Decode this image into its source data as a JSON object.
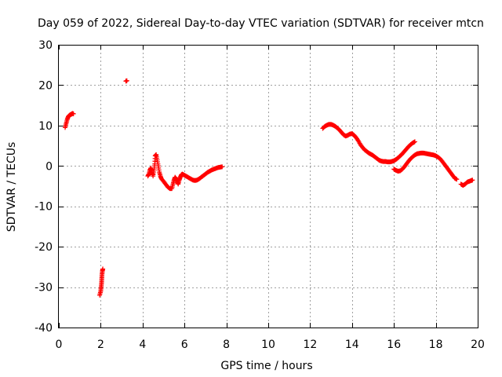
{
  "chart_data": {
    "type": "scatter",
    "title": "Day 059 of 2022, Sidereal Day-to-day VTEC variation (SDTVAR) for receiver mtcn",
    "xlabel": "GPS time / hours",
    "ylabel": "SDTVAR / TECUs",
    "xlim": [
      0,
      20
    ],
    "ylim": [
      -40,
      30
    ],
    "x_ticks": [
      0,
      2,
      4,
      6,
      8,
      10,
      12,
      14,
      16,
      18,
      20
    ],
    "y_ticks": [
      -40,
      -30,
      -20,
      -10,
      0,
      10,
      20,
      30
    ],
    "x_tick_labels": [
      "0",
      "2",
      "4",
      "6",
      "8",
      "10",
      "12",
      "14",
      "16",
      "18",
      "20"
    ],
    "y_tick_labels": [
      "-40",
      "-30",
      "-20",
      "-10",
      "0",
      "10",
      "20",
      "30"
    ],
    "grid": true,
    "marker": "+",
    "series": [
      {
        "name": "SDTVAR",
        "color": "#ff0000",
        "segments": [
          [
            [
              0.3,
              9.5
            ],
            [
              0.35,
              10.5
            ],
            [
              0.4,
              11.5
            ],
            [
              0.45,
              12.2
            ],
            [
              0.5,
              12.5
            ],
            [
              0.55,
              12.7
            ],
            [
              0.6,
              12.8
            ],
            [
              0.65,
              13.0
            ],
            [
              0.7,
              12.9
            ]
          ],
          [
            [
              1.95,
              -32.0
            ],
            [
              2.0,
              -31.0
            ],
            [
              2.02,
              -30.0
            ],
            [
              2.04,
              -29.0
            ],
            [
              2.05,
              -28.0
            ],
            [
              2.06,
              -27.0
            ],
            [
              2.08,
              -26.0
            ],
            [
              2.1,
              -25.5
            ]
          ],
          [
            [
              3.2,
              21.0
            ],
            [
              3.25,
              21.1
            ]
          ],
          [
            [
              4.25,
              -2.5
            ],
            [
              4.3,
              -2.0
            ],
            [
              4.35,
              -1.0
            ],
            [
              4.4,
              -0.5
            ],
            [
              4.45,
              -1.5
            ],
            [
              4.5,
              -2.5
            ],
            [
              4.55,
              -1.0
            ],
            [
              4.58,
              0.5
            ],
            [
              4.6,
              2.5
            ],
            [
              4.65,
              2.8
            ],
            [
              4.7,
              1.5
            ],
            [
              4.75,
              0.0
            ],
            [
              4.8,
              -1.5
            ],
            [
              4.85,
              -2.5
            ],
            [
              4.9,
              -3.2
            ],
            [
              5.0,
              -3.8
            ],
            [
              5.1,
              -4.5
            ],
            [
              5.2,
              -5.2
            ],
            [
              5.3,
              -5.6
            ],
            [
              5.4,
              -5.6
            ],
            [
              5.45,
              -4.5
            ],
            [
              5.5,
              -3.5
            ],
            [
              5.55,
              -2.8
            ],
            [
              5.6,
              -3.2
            ],
            [
              5.65,
              -3.8
            ],
            [
              5.7,
              -4.5
            ],
            [
              5.75,
              -3.5
            ],
            [
              5.8,
              -2.8
            ],
            [
              5.85,
              -2.2
            ],
            [
              5.9,
              -2.0
            ],
            [
              6.0,
              -2.3
            ],
            [
              6.1,
              -2.6
            ],
            [
              6.2,
              -2.9
            ],
            [
              6.3,
              -3.2
            ],
            [
              6.4,
              -3.5
            ],
            [
              6.5,
              -3.6
            ],
            [
              6.6,
              -3.5
            ],
            [
              6.7,
              -3.2
            ],
            [
              6.8,
              -2.8
            ],
            [
              6.9,
              -2.4
            ],
            [
              7.0,
              -2.0
            ],
            [
              7.1,
              -1.6
            ],
            [
              7.2,
              -1.3
            ],
            [
              7.3,
              -1.0
            ],
            [
              7.4,
              -0.8
            ],
            [
              7.5,
              -0.6
            ],
            [
              7.6,
              -0.4
            ],
            [
              7.7,
              -0.3
            ],
            [
              7.8,
              -0.2
            ]
          ],
          [
            [
              12.6,
              9.3
            ],
            [
              12.7,
              9.8
            ],
            [
              12.8,
              10.1
            ],
            [
              12.9,
              10.3
            ],
            [
              13.0,
              10.3
            ],
            [
              13.1,
              10.1
            ],
            [
              13.2,
              9.8
            ],
            [
              13.3,
              9.4
            ],
            [
              13.4,
              8.9
            ],
            [
              13.5,
              8.3
            ],
            [
              13.6,
              7.7
            ],
            [
              13.7,
              7.4
            ],
            [
              13.8,
              7.6
            ],
            [
              13.9,
              7.9
            ],
            [
              14.0,
              8.0
            ],
            [
              14.1,
              7.6
            ],
            [
              14.2,
              7.0
            ],
            [
              14.3,
              6.2
            ],
            [
              14.4,
              5.3
            ],
            [
              14.5,
              4.6
            ],
            [
              14.6,
              4.0
            ],
            [
              14.7,
              3.6
            ],
            [
              14.8,
              3.2
            ],
            [
              14.9,
              2.9
            ],
            [
              15.0,
              2.6
            ],
            [
              15.1,
              2.2
            ],
            [
              15.2,
              1.8
            ],
            [
              15.3,
              1.4
            ],
            [
              15.4,
              1.2
            ],
            [
              15.5,
              1.1
            ],
            [
              15.6,
              1.1
            ],
            [
              15.7,
              1.0
            ],
            [
              15.8,
              1.0
            ],
            [
              15.9,
              1.1
            ],
            [
              16.0,
              1.3
            ],
            [
              16.1,
              1.6
            ],
            [
              16.2,
              2.0
            ],
            [
              16.3,
              2.5
            ],
            [
              16.4,
              3.0
            ],
            [
              16.5,
              3.6
            ],
            [
              16.6,
              4.2
            ],
            [
              16.7,
              4.8
            ],
            [
              16.8,
              5.3
            ],
            [
              16.9,
              5.7
            ],
            [
              17.0,
              6.0
            ]
          ],
          [
            [
              16.0,
              -0.8
            ],
            [
              16.1,
              -1.1
            ],
            [
              16.2,
              -1.3
            ],
            [
              16.3,
              -1.2
            ],
            [
              16.4,
              -0.8
            ],
            [
              16.5,
              -0.2
            ],
            [
              16.6,
              0.5
            ],
            [
              16.7,
              1.2
            ],
            [
              16.8,
              1.8
            ],
            [
              16.9,
              2.3
            ],
            [
              17.0,
              2.7
            ],
            [
              17.1,
              3.0
            ],
            [
              17.2,
              3.1
            ],
            [
              17.3,
              3.2
            ],
            [
              17.4,
              3.2
            ],
            [
              17.5,
              3.1
            ],
            [
              17.6,
              3.0
            ],
            [
              17.7,
              2.9
            ],
            [
              17.8,
              2.8
            ],
            [
              17.9,
              2.7
            ],
            [
              18.0,
              2.5
            ],
            [
              18.1,
              2.2
            ],
            [
              18.2,
              1.8
            ],
            [
              18.3,
              1.2
            ],
            [
              18.4,
              0.5
            ],
            [
              18.5,
              -0.2
            ],
            [
              18.6,
              -0.9
            ],
            [
              18.7,
              -1.6
            ],
            [
              18.8,
              -2.3
            ],
            [
              18.9,
              -3.0
            ],
            [
              19.0,
              -3.3
            ]
          ],
          [
            [
              19.2,
              -4.5
            ],
            [
              19.3,
              -4.8
            ],
            [
              19.4,
              -4.5
            ],
            [
              19.5,
              -4.0
            ],
            [
              19.6,
              -3.8
            ],
            [
              19.7,
              -3.6
            ],
            [
              19.75,
              -3.5
            ]
          ]
        ]
      }
    ]
  }
}
